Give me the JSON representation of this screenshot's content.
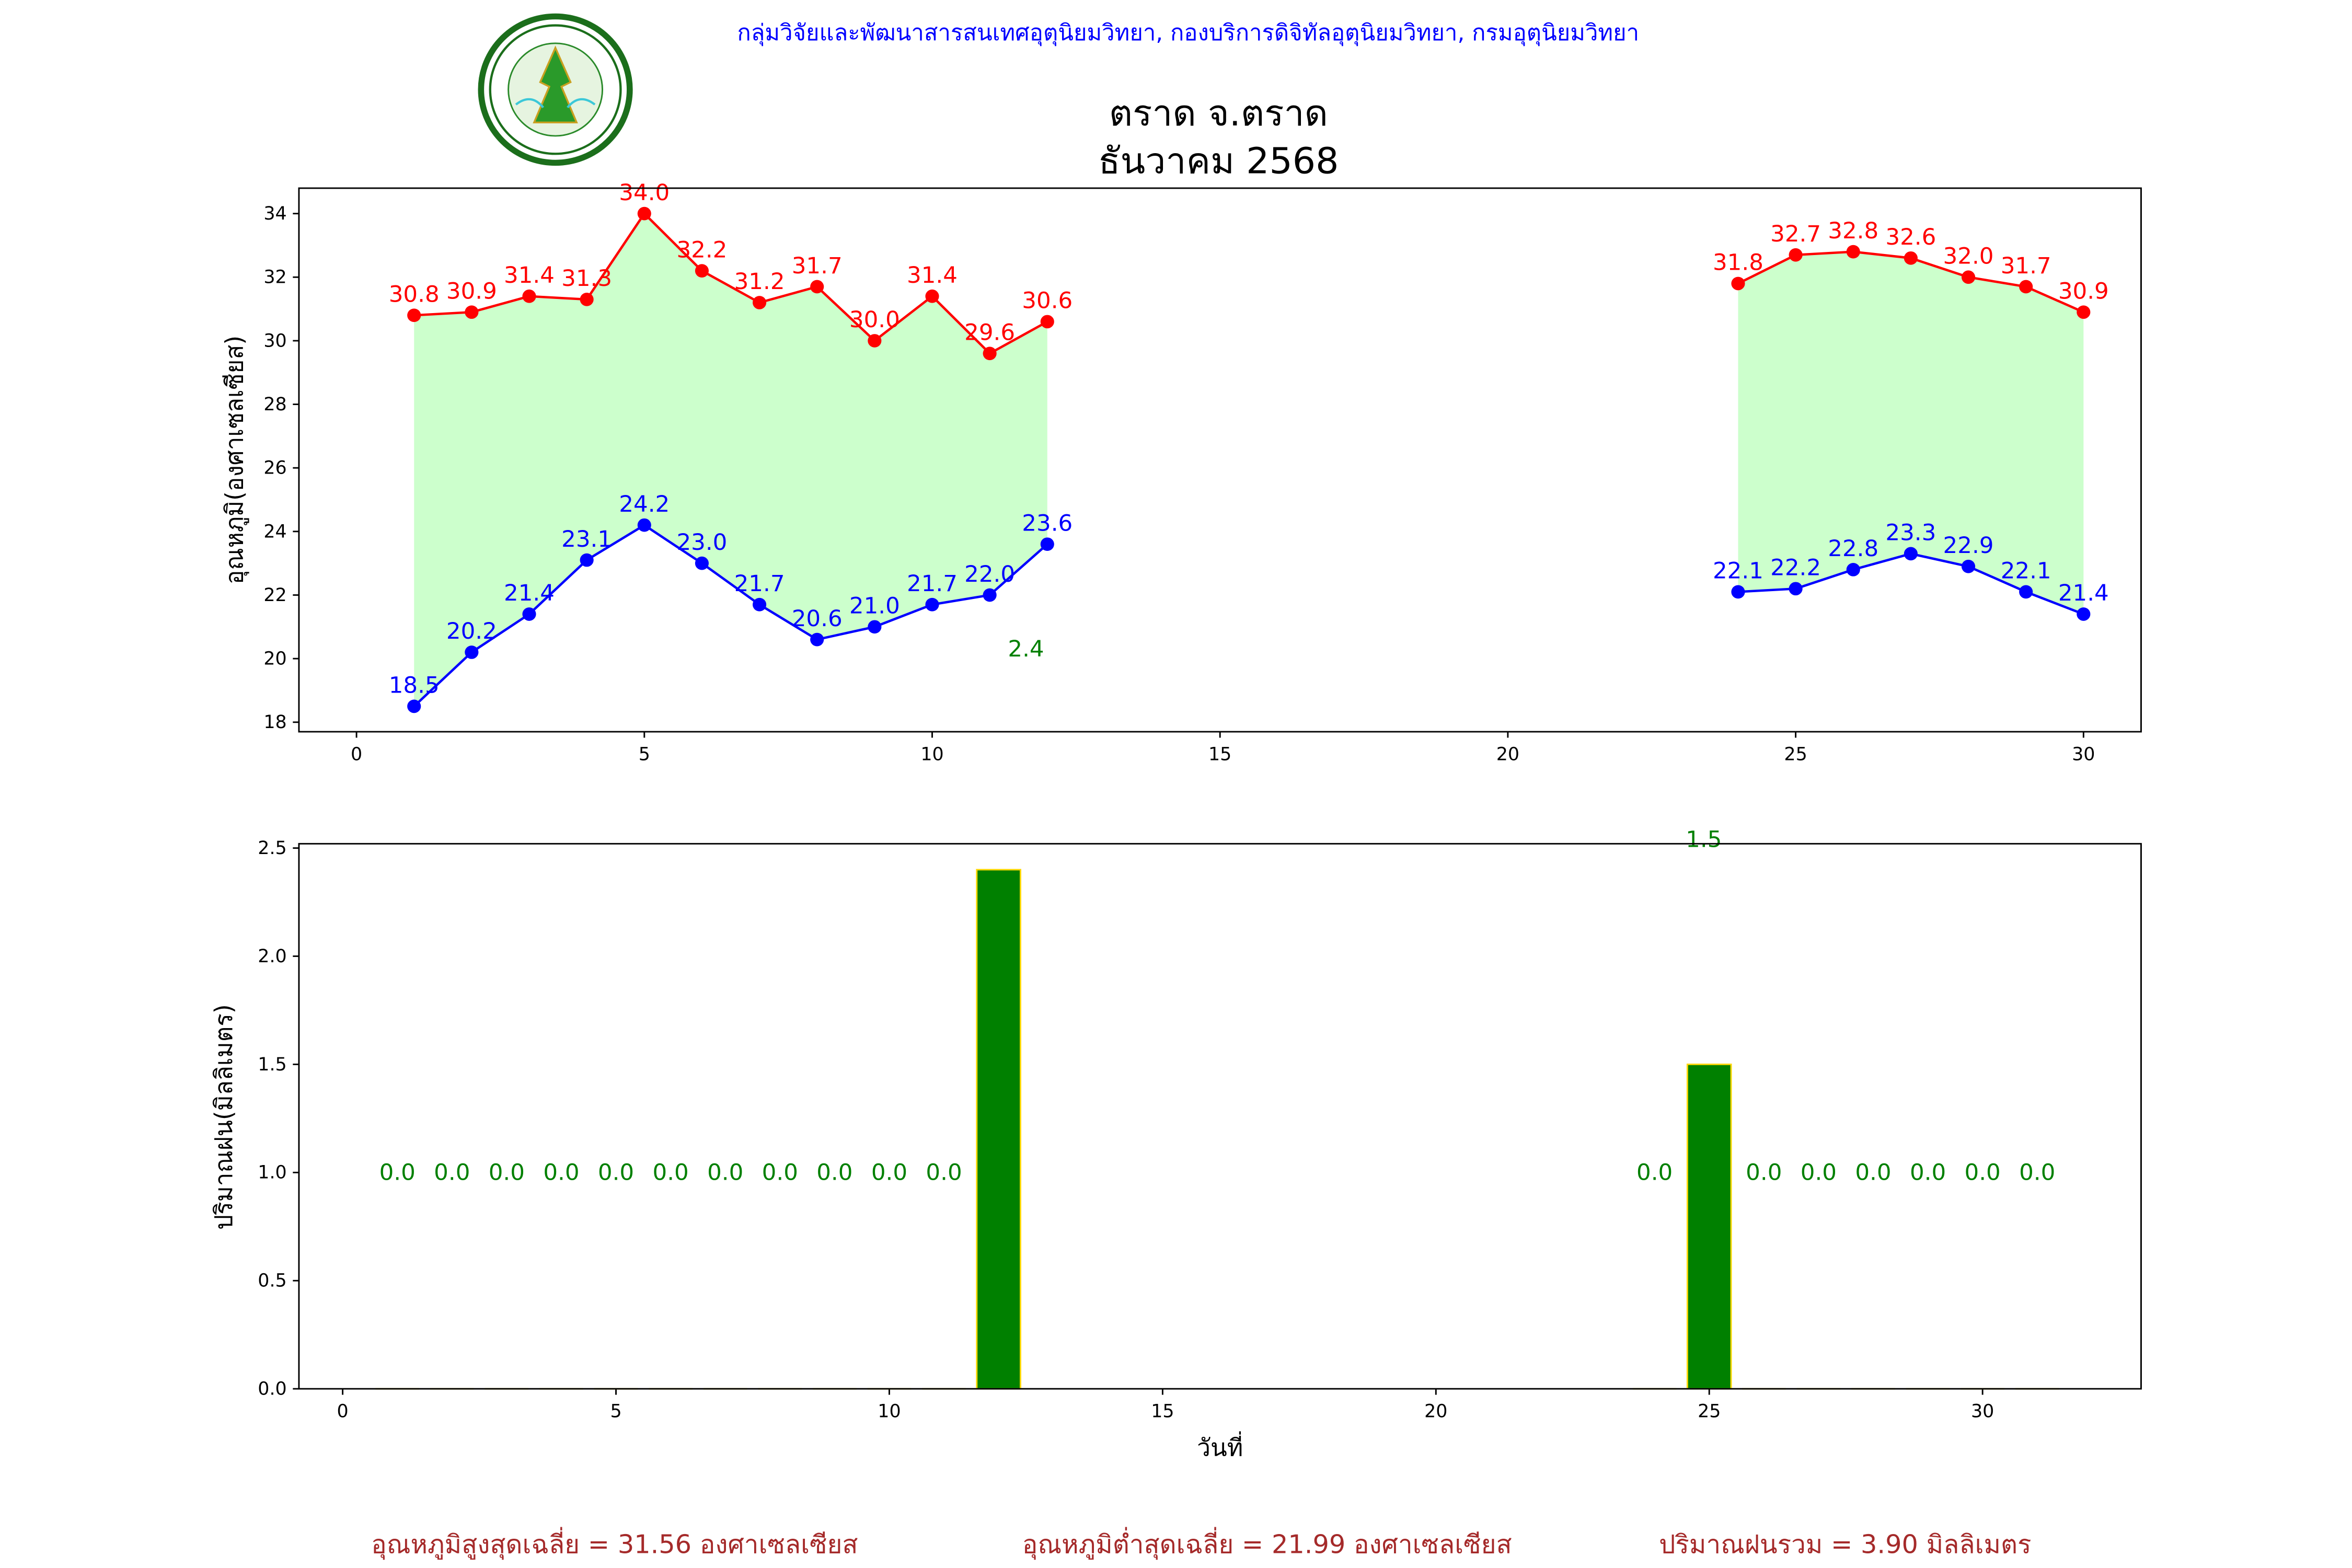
{
  "header": {
    "agency": "กลุ่มวิจัยและพัฒนาสารสนเทศอุตุนิยมวิทยา, กองบริการดิจิทัลอุตุนิยมวิทยา, กรมอุตุนิยมวิทยา",
    "title_line1": "ตราด จ.ตราด",
    "title_line2": "ธันวาคม 2568",
    "logo_text": "กรมอุตุนิยมวิทยา METEOROLOGICAL DEPARTMENT"
  },
  "summary": {
    "avg_max": "อุณหภูมิสูงสุดเฉลี่ย = 31.56 องศาเซลเซียส",
    "avg_min": "อุณหภูมิต่ำสุดเฉลี่ย = 21.99 องศาเซลเซียส",
    "rain_total": "ปริมาณฝนรวม = 3.90 มิลลิเมตร"
  },
  "colors": {
    "max": "#ff0000",
    "min": "#0000ff",
    "fill": "#ccffcc",
    "rain": "#008000",
    "bar_edge": "#ffd700",
    "header": "#0000ff",
    "summary": "#a52a2a"
  },
  "chart_data": [
    {
      "type": "line",
      "ylabel": "อุณหภูมิ(องศาเซลเซียส)",
      "xlim": [
        -1,
        31
      ],
      "ylim": [
        17.7,
        34.8
      ],
      "xticks": [
        0,
        5,
        10,
        15,
        20,
        25,
        30
      ],
      "yticks": [
        18,
        20,
        22,
        24,
        26,
        28,
        30,
        32,
        34
      ],
      "series": [
        {
          "name": "max",
          "segments": [
            {
              "x": [
                1,
                2,
                3,
                4,
                5,
                6,
                7,
                8,
                9,
                10,
                11,
                12
              ],
              "y": [
                30.8,
                30.9,
                31.4,
                31.3,
                34.0,
                32.2,
                31.2,
                31.7,
                30.0,
                31.4,
                29.6,
                30.6
              ]
            },
            {
              "x": [
                24,
                25,
                26,
                27,
                28,
                29,
                30
              ],
              "y": [
                31.8,
                32.7,
                32.8,
                32.6,
                32.0,
                31.7,
                30.9
              ]
            }
          ]
        },
        {
          "name": "min",
          "segments": [
            {
              "x": [
                1,
                2,
                3,
                4,
                5,
                6,
                7,
                8,
                9,
                10,
                11,
                12
              ],
              "y": [
                18.5,
                20.2,
                21.4,
                23.1,
                24.2,
                23.0,
                21.7,
                20.6,
                21.0,
                21.7,
                22.0,
                23.6
              ]
            },
            {
              "x": [
                24,
                25,
                26,
                27,
                28,
                29,
                30
              ],
              "y": [
                22.1,
                22.2,
                22.8,
                23.3,
                22.9,
                22.1,
                21.4
              ]
            }
          ]
        }
      ],
      "annotations": [
        {
          "text": "2.4",
          "x": 11.63,
          "y": 20.3
        }
      ]
    },
    {
      "type": "bar",
      "xlabel": "วันที่",
      "ylabel": "ปริมาณฝน(มิลลิเมตร)",
      "xlim": [
        -0.8,
        32.9
      ],
      "ylim": [
        0,
        2.52
      ],
      "xticks": [
        0,
        5,
        10,
        15,
        20,
        25,
        30
      ],
      "yticks": [
        0.0,
        0.5,
        1.0,
        1.5,
        2.0,
        2.5
      ],
      "x": [
        1,
        2,
        3,
        4,
        5,
        6,
        7,
        8,
        9,
        10,
        11,
        12,
        24,
        25,
        26,
        27,
        28,
        29,
        30,
        31
      ],
      "values": [
        0.0,
        0.0,
        0.0,
        0.0,
        0.0,
        0.0,
        0.0,
        0.0,
        0.0,
        0.0,
        0.0,
        2.4,
        0.0,
        1.5,
        0.0,
        0.0,
        0.0,
        0.0,
        0.0,
        0.0
      ],
      "labels": [
        {
          "text": "0.0",
          "x": 1
        },
        {
          "text": "0.0",
          "x": 2
        },
        {
          "text": "0.0",
          "x": 3
        },
        {
          "text": "0.0",
          "x": 4
        },
        {
          "text": "0.0",
          "x": 5
        },
        {
          "text": "0.0",
          "x": 6
        },
        {
          "text": "0.0",
          "x": 7
        },
        {
          "text": "0.0",
          "x": 8
        },
        {
          "text": "0.0",
          "x": 9
        },
        {
          "text": "0.0",
          "x": 10
        },
        {
          "text": "0.0",
          "x": 11
        },
        {
          "text": "0.0",
          "x": 24
        },
        {
          "text": "0.0",
          "x": 26
        },
        {
          "text": "0.0",
          "x": 27
        },
        {
          "text": "0.0",
          "x": 28
        },
        {
          "text": "0.0",
          "x": 29
        },
        {
          "text": "0.0",
          "x": 30
        },
        {
          "text": "0.0",
          "x": 31
        }
      ],
      "label_y": 1.0,
      "annotations": [
        {
          "text": "1.5",
          "x": 24.9,
          "y": 2.54
        }
      ]
    }
  ]
}
